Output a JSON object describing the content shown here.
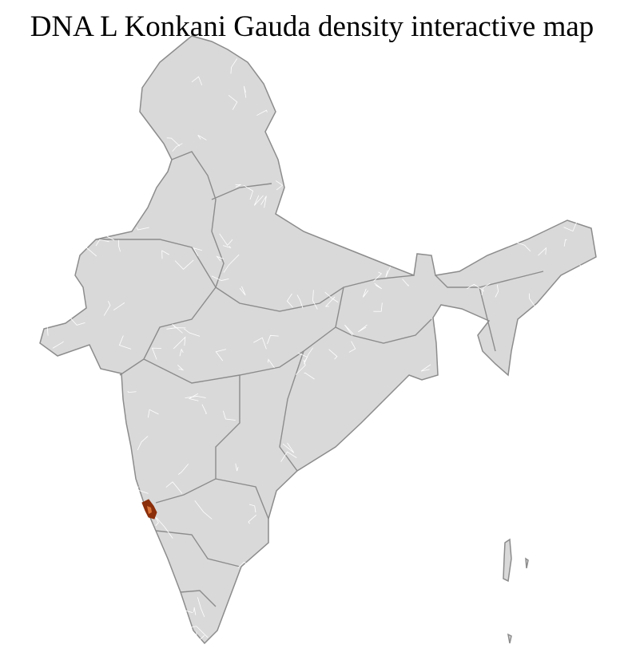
{
  "title": "DNA L Konkani Gauda density interactive map",
  "map": {
    "colors": {
      "land": "#d9d9d9",
      "district_border": "#ffffff",
      "state_border": "#8c8c8c",
      "highlight": "#8b2e0a",
      "highlight_light": "#d8743a"
    }
  }
}
